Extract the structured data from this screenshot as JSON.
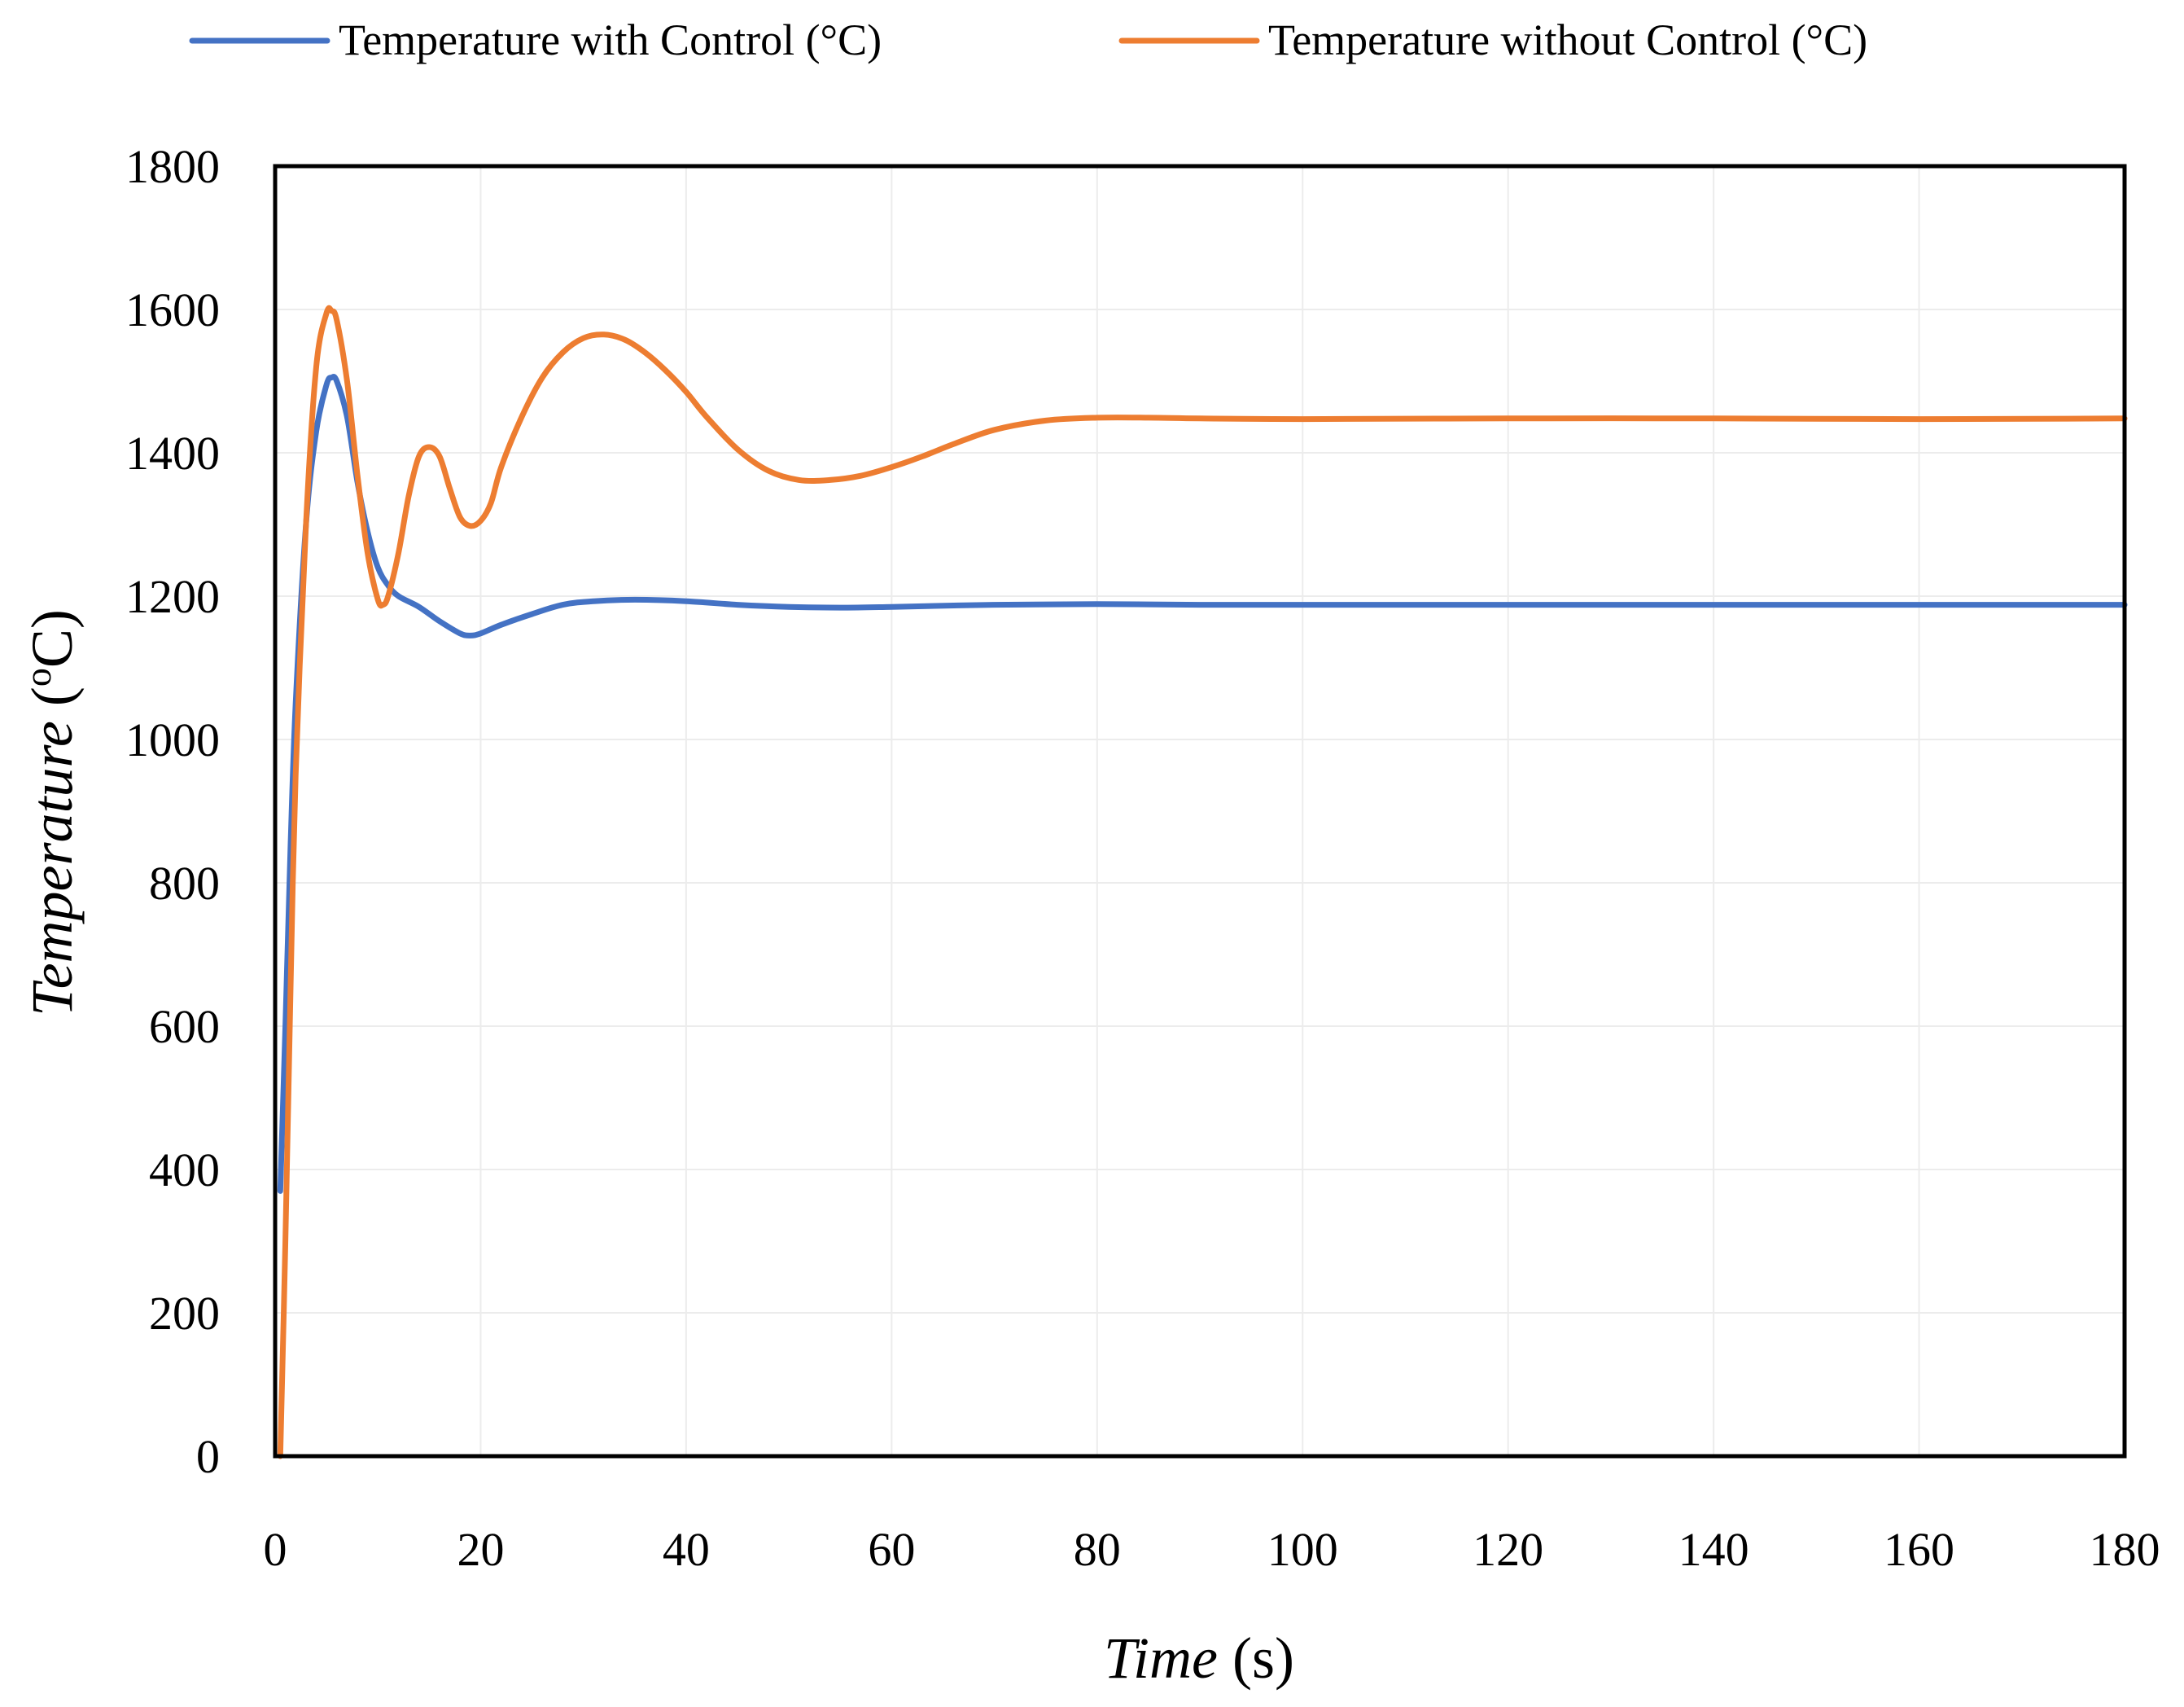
{
  "chart_data": {
    "type": "line",
    "title": "",
    "xlabel": "Time (s)",
    "xlabel_main": "Time",
    "xlabel_unit": " (s)",
    "ylabel": "Temperature (oC)",
    "ylabel_main": "Temperature",
    "ylabel_unit": " (",
    "ylabel_sup": "o",
    "ylabel_close": "C)",
    "xlim": [
      0,
      180
    ],
    "ylim": [
      0,
      1800
    ],
    "xticks": [
      0,
      20,
      40,
      60,
      80,
      100,
      120,
      140,
      160,
      180
    ],
    "yticks": [
      0,
      200,
      400,
      600,
      800,
      1000,
      1200,
      1400,
      1600,
      1800
    ],
    "grid": true,
    "legend_position": "top",
    "series": [
      {
        "name": "Temperature with Control (°C)",
        "color": "#4472C4",
        "points": [
          [
            0.5,
            370
          ],
          [
            1,
            600
          ],
          [
            1.5,
            850
          ],
          [
            2,
            1050
          ],
          [
            3,
            1300
          ],
          [
            4,
            1430
          ],
          [
            5,
            1495
          ],
          [
            5.5,
            1505
          ],
          [
            6,
            1500
          ],
          [
            7,
            1450
          ],
          [
            8,
            1360
          ],
          [
            9,
            1290
          ],
          [
            10,
            1240
          ],
          [
            11,
            1215
          ],
          [
            12,
            1200
          ],
          [
            14,
            1185
          ],
          [
            16,
            1165
          ],
          [
            18,
            1148
          ],
          [
            19,
            1145
          ],
          [
            20,
            1148
          ],
          [
            22,
            1160
          ],
          [
            25,
            1175
          ],
          [
            28,
            1188
          ],
          [
            31,
            1193
          ],
          [
            35,
            1195
          ],
          [
            40,
            1193
          ],
          [
            45,
            1188
          ],
          [
            50,
            1185
          ],
          [
            55,
            1184
          ],
          [
            60,
            1185
          ],
          [
            70,
            1188
          ],
          [
            80,
            1189
          ],
          [
            90,
            1188
          ],
          [
            100,
            1188
          ],
          [
            120,
            1188
          ],
          [
            140,
            1188
          ],
          [
            160,
            1188
          ],
          [
            180,
            1188
          ]
        ]
      },
      {
        "name": "Temperature without Control (°C)",
        "color": "#ED7D31",
        "points": [
          [
            0.5,
            0
          ],
          [
            1,
            300
          ],
          [
            1.5,
            650
          ],
          [
            2,
            950
          ],
          [
            3,
            1300
          ],
          [
            4,
            1520
          ],
          [
            5,
            1595
          ],
          [
            5.5,
            1598
          ],
          [
            6,
            1585
          ],
          [
            7,
            1500
          ],
          [
            8,
            1370
          ],
          [
            9,
            1260
          ],
          [
            10,
            1195
          ],
          [
            10.5,
            1188
          ],
          [
            11,
            1200
          ],
          [
            12,
            1260
          ],
          [
            13,
            1340
          ],
          [
            14,
            1395
          ],
          [
            15,
            1408
          ],
          [
            16,
            1395
          ],
          [
            17,
            1350
          ],
          [
            18,
            1310
          ],
          [
            19,
            1298
          ],
          [
            20,
            1305
          ],
          [
            21,
            1330
          ],
          [
            22,
            1380
          ],
          [
            24,
            1450
          ],
          [
            26,
            1505
          ],
          [
            28,
            1540
          ],
          [
            30,
            1560
          ],
          [
            32,
            1565
          ],
          [
            34,
            1558
          ],
          [
            36,
            1540
          ],
          [
            38,
            1515
          ],
          [
            40,
            1485
          ],
          [
            42,
            1450
          ],
          [
            45,
            1405
          ],
          [
            48,
            1375
          ],
          [
            51,
            1362
          ],
          [
            54,
            1362
          ],
          [
            57,
            1368
          ],
          [
            60,
            1380
          ],
          [
            63,
            1395
          ],
          [
            66,
            1412
          ],
          [
            70,
            1432
          ],
          [
            75,
            1445
          ],
          [
            80,
            1449
          ],
          [
            85,
            1449
          ],
          [
            90,
            1448
          ],
          [
            100,
            1447
          ],
          [
            120,
            1448
          ],
          [
            140,
            1448
          ],
          [
            160,
            1447
          ],
          [
            180,
            1448
          ]
        ]
      }
    ]
  }
}
